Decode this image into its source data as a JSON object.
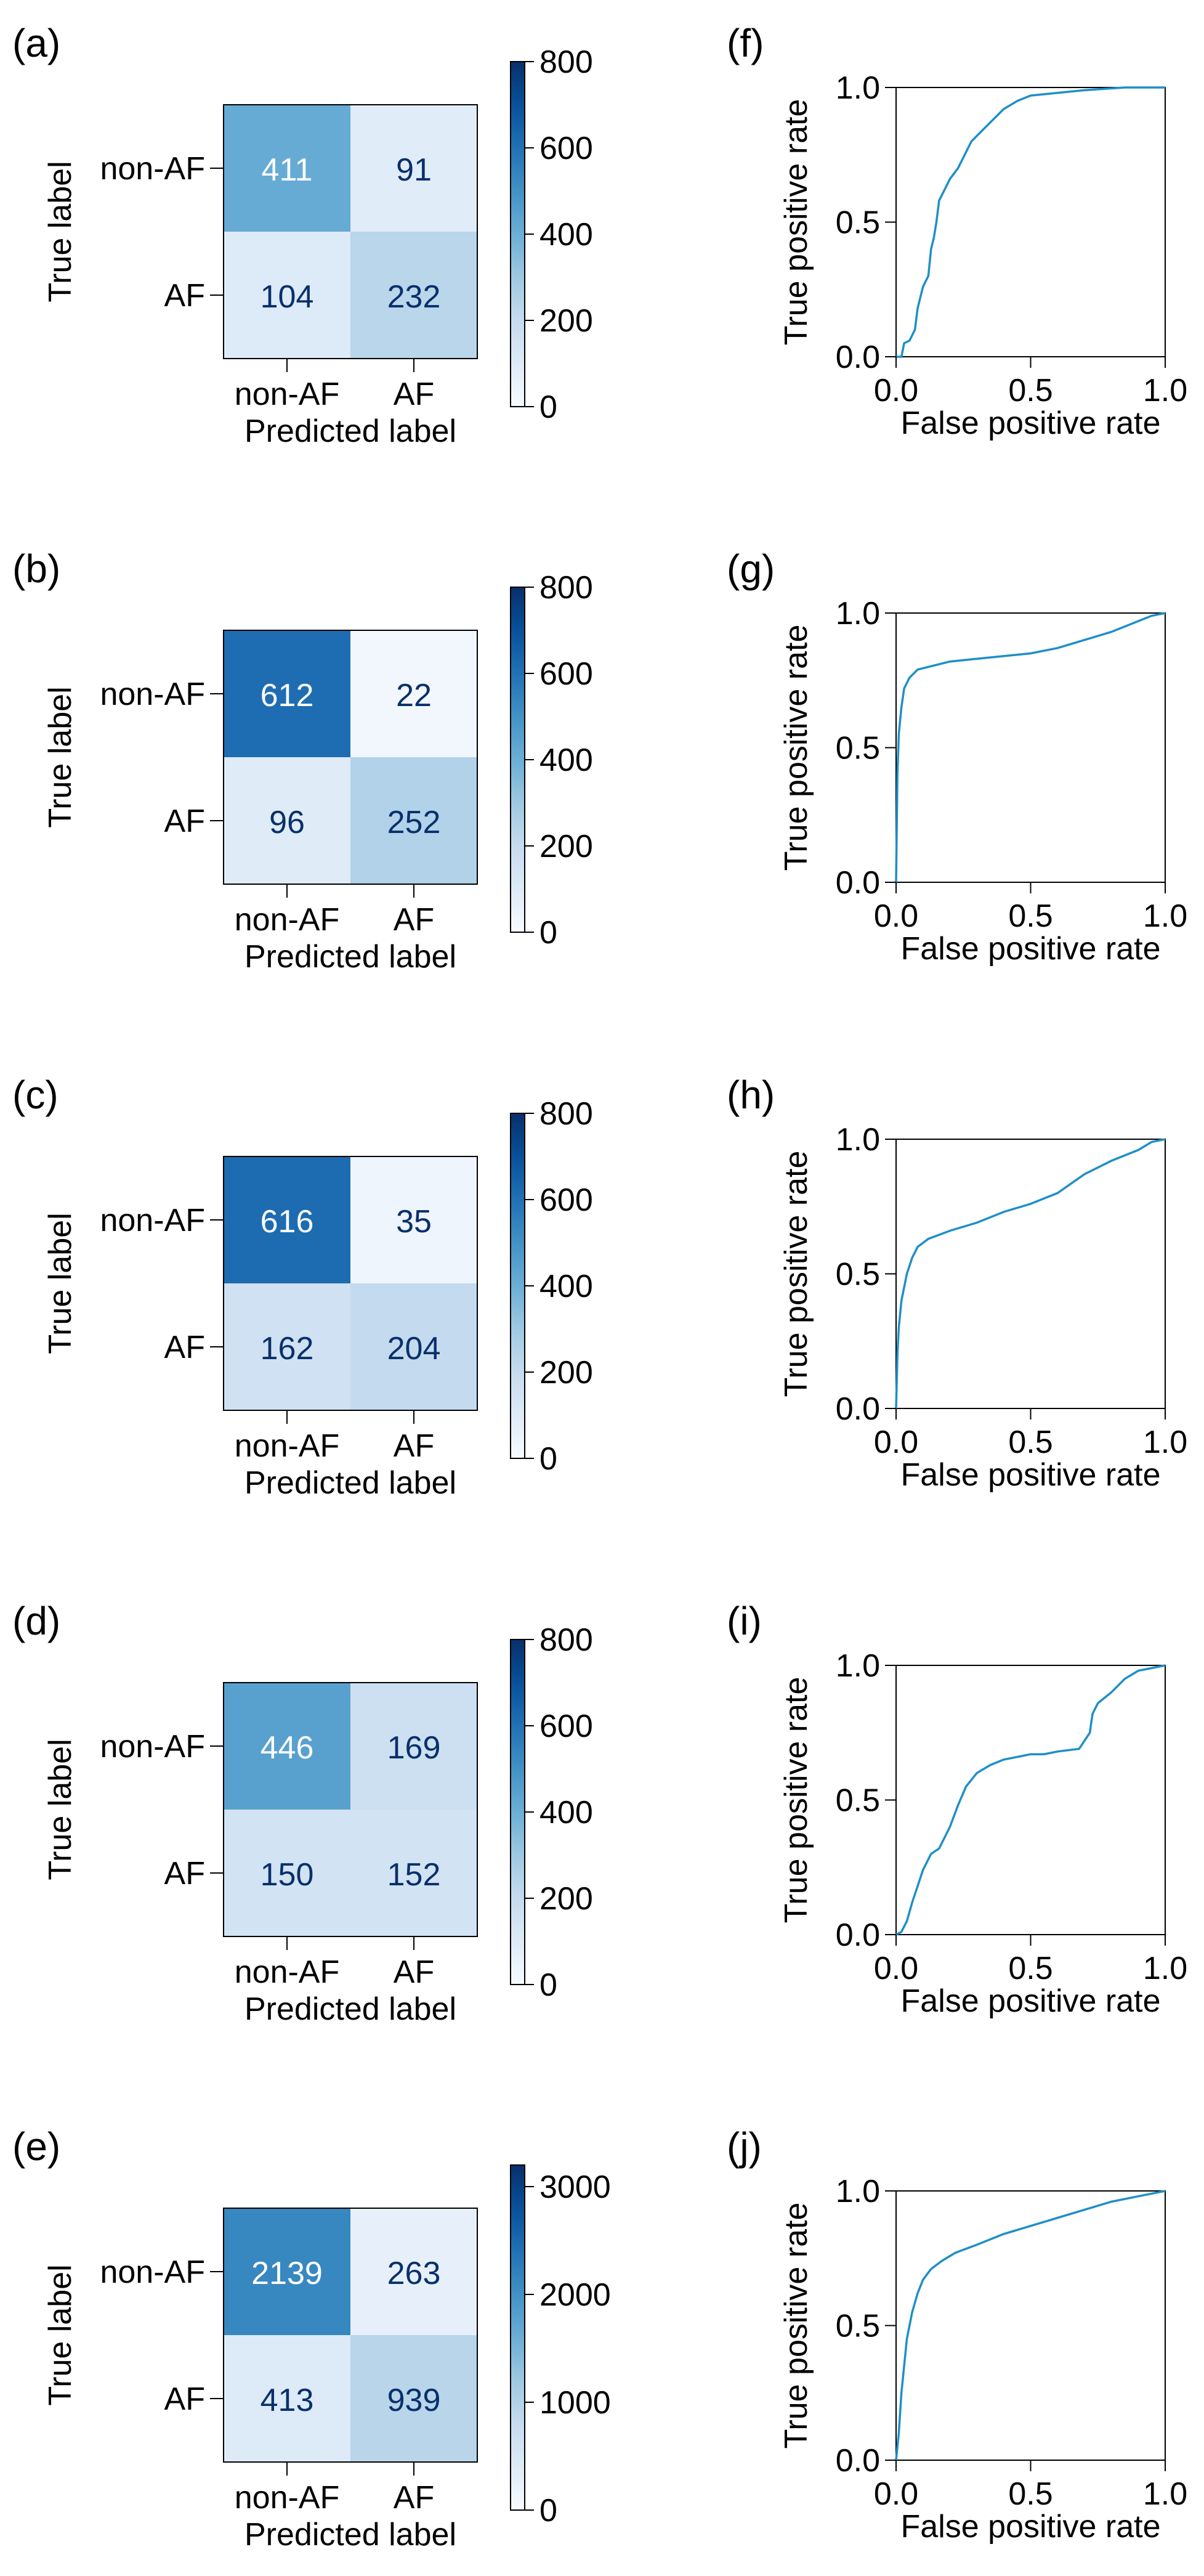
{
  "chart_data": [
    {
      "panel": "(a)",
      "type": "heatmap",
      "ylabel": "True label",
      "xlabel": "Predicted label",
      "row_labels": [
        "non-AF",
        "AF"
      ],
      "col_labels": [
        "non-AF",
        "AF"
      ],
      "matrix": [
        [
          411,
          91
        ],
        [
          104,
          232
        ]
      ],
      "colorbar": {
        "min": 0,
        "max": 800,
        "ticks": [
          0,
          200,
          400,
          600,
          800
        ]
      }
    },
    {
      "panel": "(b)",
      "type": "heatmap",
      "ylabel": "True label",
      "xlabel": "Predicted label",
      "row_labels": [
        "non-AF",
        "AF"
      ],
      "col_labels": [
        "non-AF",
        "AF"
      ],
      "matrix": [
        [
          612,
          22
        ],
        [
          96,
          252
        ]
      ],
      "colorbar": {
        "min": 0,
        "max": 800,
        "ticks": [
          0,
          200,
          400,
          600,
          800
        ]
      }
    },
    {
      "panel": "(c)",
      "type": "heatmap",
      "ylabel": "True label",
      "xlabel": "Predicted label",
      "row_labels": [
        "non-AF",
        "AF"
      ],
      "col_labels": [
        "non-AF",
        "AF"
      ],
      "matrix": [
        [
          616,
          35
        ],
        [
          162,
          204
        ]
      ],
      "colorbar": {
        "min": 0,
        "max": 800,
        "ticks": [
          0,
          200,
          400,
          600,
          800
        ]
      }
    },
    {
      "panel": "(d)",
      "type": "heatmap",
      "ylabel": "True label",
      "xlabel": "Predicted label",
      "row_labels": [
        "non-AF",
        "AF"
      ],
      "col_labels": [
        "non-AF",
        "AF"
      ],
      "matrix": [
        [
          446,
          169
        ],
        [
          150,
          152
        ]
      ],
      "colorbar": {
        "min": 0,
        "max": 800,
        "ticks": [
          0,
          200,
          400,
          600,
          800
        ]
      }
    },
    {
      "panel": "(e)",
      "type": "heatmap",
      "ylabel": "True label",
      "xlabel": "Predicted label",
      "row_labels": [
        "non-AF",
        "AF"
      ],
      "col_labels": [
        "non-AF",
        "AF"
      ],
      "matrix": [
        [
          2139,
          263
        ],
        [
          413,
          939
        ]
      ],
      "colorbar": {
        "min": 0,
        "max": 3200,
        "ticks": [
          0,
          1000,
          2000,
          3000
        ]
      }
    },
    {
      "panel": "(f)",
      "type": "line",
      "xlabel": "False positive rate",
      "ylabel": "True positive rate",
      "xlim": [
        0,
        1
      ],
      "ylim": [
        0,
        1
      ],
      "xticks": [
        0.0,
        0.5,
        1.0
      ],
      "yticks": [
        0.0,
        0.5,
        1.0
      ],
      "series": [
        {
          "points": [
            [
              0,
              0
            ],
            [
              0.02,
              0.0
            ],
            [
              0.03,
              0.05
            ],
            [
              0.05,
              0.06
            ],
            [
              0.07,
              0.1
            ],
            [
              0.08,
              0.18
            ],
            [
              0.1,
              0.26
            ],
            [
              0.12,
              0.3
            ],
            [
              0.13,
              0.4
            ],
            [
              0.14,
              0.44
            ],
            [
              0.15,
              0.5
            ],
            [
              0.16,
              0.58
            ],
            [
              0.18,
              0.62
            ],
            [
              0.2,
              0.66
            ],
            [
              0.23,
              0.7
            ],
            [
              0.26,
              0.76
            ],
            [
              0.28,
              0.8
            ],
            [
              0.32,
              0.84
            ],
            [
              0.36,
              0.88
            ],
            [
              0.4,
              0.92
            ],
            [
              0.45,
              0.95
            ],
            [
              0.5,
              0.97
            ],
            [
              0.6,
              0.98
            ],
            [
              0.7,
              0.99
            ],
            [
              0.85,
              1.0
            ],
            [
              1,
              1
            ]
          ]
        }
      ]
    },
    {
      "panel": "(g)",
      "type": "line",
      "xlabel": "False positive rate",
      "ylabel": "True positive rate",
      "xlim": [
        0,
        1
      ],
      "ylim": [
        0,
        1
      ],
      "xticks": [
        0.0,
        0.5,
        1.0
      ],
      "yticks": [
        0.0,
        0.5,
        1.0
      ],
      "series": [
        {
          "points": [
            [
              0,
              0
            ],
            [
              0.005,
              0.4
            ],
            [
              0.01,
              0.55
            ],
            [
              0.02,
              0.65
            ],
            [
              0.03,
              0.72
            ],
            [
              0.05,
              0.76
            ],
            [
              0.08,
              0.79
            ],
            [
              0.12,
              0.8
            ],
            [
              0.2,
              0.82
            ],
            [
              0.3,
              0.83
            ],
            [
              0.4,
              0.84
            ],
            [
              0.5,
              0.85
            ],
            [
              0.6,
              0.87
            ],
            [
              0.7,
              0.9
            ],
            [
              0.8,
              0.93
            ],
            [
              0.9,
              0.97
            ],
            [
              0.95,
              0.99
            ],
            [
              1,
              1
            ]
          ]
        }
      ]
    },
    {
      "panel": "(h)",
      "type": "line",
      "xlabel": "False positive rate",
      "ylabel": "True positive rate",
      "xlim": [
        0,
        1
      ],
      "ylim": [
        0,
        1
      ],
      "xticks": [
        0.0,
        0.5,
        1.0
      ],
      "yticks": [
        0.0,
        0.5,
        1.0
      ],
      "series": [
        {
          "points": [
            [
              0,
              0
            ],
            [
              0.005,
              0.2
            ],
            [
              0.01,
              0.3
            ],
            [
              0.02,
              0.4
            ],
            [
              0.04,
              0.5
            ],
            [
              0.06,
              0.56
            ],
            [
              0.08,
              0.6
            ],
            [
              0.12,
              0.63
            ],
            [
              0.2,
              0.66
            ],
            [
              0.3,
              0.69
            ],
            [
              0.4,
              0.73
            ],
            [
              0.5,
              0.76
            ],
            [
              0.6,
              0.8
            ],
            [
              0.7,
              0.87
            ],
            [
              0.8,
              0.92
            ],
            [
              0.9,
              0.96
            ],
            [
              0.95,
              0.99
            ],
            [
              1,
              1
            ]
          ]
        }
      ]
    },
    {
      "panel": "(i)",
      "type": "line",
      "xlabel": "False positive rate",
      "ylabel": "True positive rate",
      "xlim": [
        0,
        1
      ],
      "ylim": [
        0,
        1
      ],
      "xticks": [
        0.0,
        0.5,
        1.0
      ],
      "yticks": [
        0.0,
        0.5,
        1.0
      ],
      "series": [
        {
          "points": [
            [
              0,
              0
            ],
            [
              0.02,
              0.01
            ],
            [
              0.04,
              0.05
            ],
            [
              0.06,
              0.12
            ],
            [
              0.08,
              0.18
            ],
            [
              0.1,
              0.24
            ],
            [
              0.13,
              0.3
            ],
            [
              0.16,
              0.32
            ],
            [
              0.2,
              0.4
            ],
            [
              0.23,
              0.48
            ],
            [
              0.26,
              0.55
            ],
            [
              0.3,
              0.6
            ],
            [
              0.35,
              0.63
            ],
            [
              0.4,
              0.65
            ],
            [
              0.45,
              0.66
            ],
            [
              0.5,
              0.67
            ],
            [
              0.55,
              0.67
            ],
            [
              0.6,
              0.68
            ],
            [
              0.68,
              0.69
            ],
            [
              0.72,
              0.75
            ],
            [
              0.73,
              0.82
            ],
            [
              0.75,
              0.86
            ],
            [
              0.8,
              0.9
            ],
            [
              0.85,
              0.95
            ],
            [
              0.9,
              0.98
            ],
            [
              0.95,
              0.99
            ],
            [
              1,
              1
            ]
          ]
        }
      ]
    },
    {
      "panel": "(j)",
      "type": "line",
      "xlabel": "False positive rate",
      "ylabel": "True positive rate",
      "xlim": [
        0,
        1
      ],
      "ylim": [
        0,
        1
      ],
      "xticks": [
        0.0,
        0.5,
        1.0
      ],
      "yticks": [
        0.0,
        0.5,
        1.0
      ],
      "series": [
        {
          "points": [
            [
              0,
              0
            ],
            [
              0.01,
              0.1
            ],
            [
              0.02,
              0.25
            ],
            [
              0.04,
              0.45
            ],
            [
              0.06,
              0.55
            ],
            [
              0.08,
              0.62
            ],
            [
              0.1,
              0.67
            ],
            [
              0.13,
              0.71
            ],
            [
              0.17,
              0.74
            ],
            [
              0.22,
              0.77
            ],
            [
              0.3,
              0.8
            ],
            [
              0.4,
              0.84
            ],
            [
              0.5,
              0.87
            ],
            [
              0.6,
              0.9
            ],
            [
              0.7,
              0.93
            ],
            [
              0.8,
              0.96
            ],
            [
              0.9,
              0.98
            ],
            [
              1,
              1
            ]
          ]
        }
      ]
    }
  ]
}
